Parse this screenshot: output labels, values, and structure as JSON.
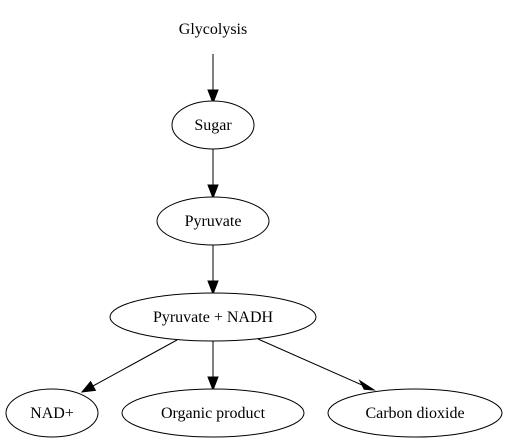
{
  "diagram": {
    "nodes": {
      "glycolysis": "Glycolysis",
      "sugar": "Sugar",
      "pyruvate": "Pyruvate",
      "pyruvate_nadh": "Pyruvate + NADH",
      "nad_plus": "NAD+",
      "organic_product": "Organic product",
      "carbon_dioxide": "Carbon dioxide"
    },
    "edges": [
      {
        "from": "Glycolysis",
        "to": "Sugar"
      },
      {
        "from": "Sugar",
        "to": "Pyruvate"
      },
      {
        "from": "Pyruvate",
        "to": "Pyruvate + NADH"
      },
      {
        "from": "Pyruvate + NADH",
        "to": "NAD+"
      },
      {
        "from": "Pyruvate + NADH",
        "to": "Organic product"
      },
      {
        "from": "Pyruvate + NADH",
        "to": "Carbon dioxide"
      }
    ]
  }
}
